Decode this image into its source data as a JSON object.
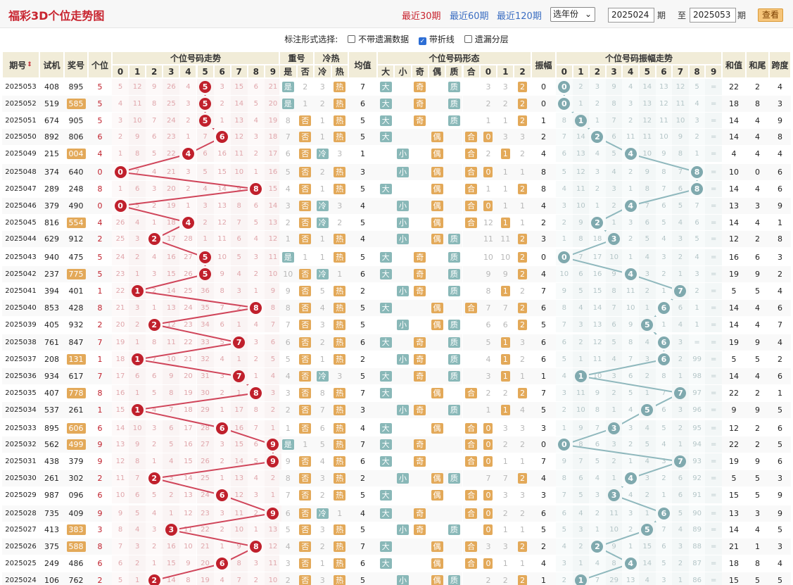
{
  "page": {
    "title": "福彩3D个位走势图"
  },
  "periods": {
    "p30": "最近30期",
    "p60": "最近60期",
    "p120": "最近120期",
    "year": "选年份"
  },
  "range": {
    "from": "2025024",
    "to": "2025053",
    "qi": "期",
    "zhi": "至",
    "view": "查看"
  },
  "options": {
    "label": "标注形式选择:",
    "items": [
      {
        "text": "不带遗漏数据",
        "checked": false
      },
      {
        "text": "带折线",
        "checked": true
      },
      {
        "text": "遗漏分层",
        "checked": false
      }
    ]
  },
  "headers": {
    "issue": "期号",
    "trial": "试机",
    "prize": "奖号",
    "unit": "个位",
    "trend": "个位号码走势",
    "repeat": "重号",
    "hot": "冷热",
    "avg": "均值",
    "form": "个位号码形态",
    "amp": "振幅",
    "ampTrend": "个位号码振幅走势",
    "sum": "和值",
    "tail": "和尾",
    "span": "跨度",
    "repSub": [
      "是",
      "否"
    ],
    "hotSub": [
      "冷",
      "热"
    ],
    "formSub": [
      "大",
      "小",
      "奇",
      "偶",
      "质",
      "合",
      "0",
      "1",
      "2"
    ],
    "digits": [
      "0",
      "1",
      "2",
      "3",
      "4",
      "5",
      "6",
      "7",
      "8",
      "9"
    ]
  },
  "rows": [
    {
      "issue": "2025053",
      "trial": "408",
      "prize": "895",
      "unit": 5,
      "miss": [
        5,
        12,
        9,
        26,
        4,
        0,
        3,
        15,
        6,
        21
      ],
      "rep": "是",
      "repN": 2,
      "cold": 3,
      "avg": 7,
      "r012": [
        3,
        4
      ],
      "amp": 0,
      "ampMiss": [
        0,
        2,
        3,
        9,
        4,
        14,
        13,
        12,
        5,
        "="
      ],
      "sum": 22,
      "tail": 2,
      "span": 4,
      "prizeHL": false
    },
    {
      "issue": "2025052",
      "trial": "519",
      "prize": "585",
      "unit": 5,
      "miss": [
        4,
        11,
        8,
        25,
        3,
        0,
        2,
        14,
        5,
        20
      ],
      "rep": "是",
      "repN": 1,
      "cold": 2,
      "avg": 6,
      "r012": [
        2,
        3
      ],
      "amp": 0,
      "ampMiss": [
        0,
        1,
        2,
        8,
        3,
        13,
        12,
        11,
        4,
        "="
      ],
      "sum": 18,
      "tail": 8,
      "span": 3,
      "prizeHL": true
    },
    {
      "issue": "2025051",
      "trial": "674",
      "prize": "905",
      "unit": 5,
      "miss": [
        3,
        10,
        7,
        24,
        2,
        0,
        1,
        13,
        4,
        19
      ],
      "rep": "否",
      "repN": 8,
      "cold": 1,
      "avg": 5,
      "r012": [
        1,
        2
      ],
      "amp": 1,
      "ampMiss": [
        8,
        1,
        1,
        7,
        2,
        12,
        11,
        10,
        3,
        "="
      ],
      "sum": 14,
      "tail": 4,
      "span": 9,
      "prizeHL": false
    },
    {
      "issue": "2025050",
      "trial": "892",
      "prize": "806",
      "unit": 6,
      "miss": [
        2,
        9,
        6,
        23,
        1,
        7,
        0,
        12,
        3,
        18
      ],
      "rep": "否",
      "repN": 7,
      "cold": 1,
      "avg": 5,
      "r012": [
        1,
        3
      ],
      "amp": 2,
      "ampMiss": [
        7,
        14,
        2,
        6,
        11,
        11,
        10,
        9,
        2,
        "="
      ],
      "sum": 14,
      "tail": 4,
      "span": 8,
      "prizeHL": false
    },
    {
      "issue": "2025049",
      "trial": "215",
      "prize": "004",
      "unit": 4,
      "miss": [
        1,
        8,
        5,
        22,
        0,
        6,
        16,
        11,
        2,
        17
      ],
      "rep": "否",
      "repN": 6,
      "cold": 3,
      "avg": 1,
      "r012": [
        2,
        2
      ],
      "amp": 4,
      "ampMiss": [
        6,
        13,
        4,
        5,
        4,
        10,
        9,
        8,
        1,
        "="
      ],
      "sum": 4,
      "tail": 4,
      "span": 4,
      "prizeHL": true
    },
    {
      "issue": "2025048",
      "trial": "374",
      "prize": "640",
      "unit": 0,
      "miss": [
        0,
        7,
        4,
        21,
        3,
        5,
        15,
        10,
        1,
        16
      ],
      "rep": "否",
      "repN": 5,
      "cold": 2,
      "avg": 3,
      "r012": [
        3,
        1
      ],
      "amp": 8,
      "ampMiss": [
        5,
        12,
        3,
        4,
        2,
        9,
        8,
        7,
        8,
        "="
      ],
      "sum": 10,
      "tail": 0,
      "span": 6,
      "prizeHL": false
    },
    {
      "issue": "2025047",
      "trial": "289",
      "prize": "248",
      "unit": 8,
      "miss": [
        1,
        6,
        3,
        20,
        2,
        4,
        14,
        9,
        0,
        15
      ],
      "rep": "否",
      "repN": 4,
      "cold": 1,
      "avg": 5,
      "r012": [
        1,
        2
      ],
      "amp": 8,
      "ampMiss": [
        4,
        11,
        2,
        3,
        1,
        8,
        7,
        6,
        8,
        "="
      ],
      "sum": 14,
      "tail": 4,
      "span": 6,
      "prizeHL": false
    },
    {
      "issue": "2025046",
      "trial": "379",
      "prize": "490",
      "unit": 0,
      "miss": [
        0,
        5,
        2,
        19,
        1,
        3,
        13,
        8,
        6,
        14
      ],
      "rep": "否",
      "repN": 3,
      "cold": 3,
      "avg": 4,
      "r012": [
        2,
        1
      ],
      "amp": 4,
      "ampMiss": [
        3,
        10,
        1,
        2,
        4,
        7,
        6,
        5,
        7,
        "="
      ],
      "sum": 13,
      "tail": 3,
      "span": 9,
      "prizeHL": false
    },
    {
      "issue": "2025045",
      "trial": "816",
      "prize": "554",
      "unit": 4,
      "miss": [
        26,
        4,
        1,
        18,
        0,
        2,
        12,
        7,
        5,
        13
      ],
      "rep": "否",
      "repN": 2,
      "cold": 2,
      "avg": 5,
      "r012": [
        12,
        1
      ],
      "amp": 2,
      "ampMiss": [
        2,
        9,
        2,
        1,
        3,
        6,
        5,
        4,
        6,
        "="
      ],
      "sum": 14,
      "tail": 4,
      "span": 1,
      "prizeHL": true
    },
    {
      "issue": "2025044",
      "trial": "629",
      "prize": "912",
      "unit": 2,
      "miss": [
        25,
        3,
        0,
        17,
        28,
        1,
        11,
        6,
        4,
        12
      ],
      "rep": "否",
      "repN": 1,
      "cold": 1,
      "avg": 4,
      "r012": [
        11,
        3
      ],
      "amp": 3,
      "ampMiss": [
        1,
        8,
        18,
        3,
        2,
        5,
        4,
        3,
        5,
        "="
      ],
      "sum": 12,
      "tail": 2,
      "span": 8,
      "prizeHL": false
    },
    {
      "issue": "2025043",
      "trial": "940",
      "prize": "475",
      "unit": 5,
      "miss": [
        24,
        2,
        4,
        16,
        27,
        0,
        10,
        5,
        3,
        11
      ],
      "rep": "是",
      "repN": 1,
      "cold": 1,
      "avg": 5,
      "r012": [
        10,
        2
      ],
      "amp": 0,
      "ampMiss": [
        0,
        7,
        17,
        10,
        1,
        4,
        3,
        2,
        4,
        "="
      ],
      "sum": 16,
      "tail": 6,
      "span": 3,
      "prizeHL": false
    },
    {
      "issue": "2025042",
      "trial": "237",
      "prize": "775",
      "unit": 5,
      "miss": [
        23,
        1,
        3,
        15,
        26,
        0,
        9,
        4,
        2,
        10
      ],
      "rep": "否",
      "repN": 10,
      "cold": 1,
      "avg": 6,
      "r012": [
        9,
        1
      ],
      "amp": 4,
      "ampMiss": [
        10,
        6,
        16,
        9,
        4,
        3,
        2,
        1,
        3,
        "="
      ],
      "sum": 19,
      "tail": 9,
      "span": 2,
      "prizeHL": true
    },
    {
      "issue": "2025041",
      "trial": "394",
      "prize": "401",
      "unit": 1,
      "miss": [
        22,
        0,
        2,
        14,
        25,
        36,
        8,
        3,
        1,
        9
      ],
      "rep": "否",
      "repN": 9,
      "cold": 5,
      "avg": 2,
      "r012": [
        8,
        2
      ],
      "amp": 7,
      "ampMiss": [
        9,
        5,
        15,
        8,
        11,
        2,
        1,
        7,
        2,
        "="
      ],
      "sum": 5,
      "tail": 5,
      "span": 4,
      "prizeHL": false
    },
    {
      "issue": "2025040",
      "trial": "853",
      "prize": "428",
      "unit": 8,
      "miss": [
        21,
        3,
        1,
        13,
        24,
        35,
        7,
        2,
        0,
        8
      ],
      "rep": "否",
      "repN": 8,
      "cold": 4,
      "avg": 5,
      "r012": [
        7,
        2
      ],
      "amp": 6,
      "ampMiss": [
        8,
        4,
        14,
        7,
        10,
        1,
        6,
        6,
        1,
        "="
      ],
      "sum": 14,
      "tail": 4,
      "span": 6,
      "prizeHL": false
    },
    {
      "issue": "2025039",
      "trial": "405",
      "prize": "932",
      "unit": 2,
      "miss": [
        20,
        2,
        0,
        12,
        23,
        34,
        6,
        1,
        4,
        7
      ],
      "rep": "否",
      "repN": 7,
      "cold": 3,
      "avg": 5,
      "r012": [
        6,
        1
      ],
      "amp": 5,
      "ampMiss": [
        7,
        3,
        13,
        6,
        9,
        5,
        1,
        4,
        1,
        "="
      ],
      "sum": 14,
      "tail": 4,
      "span": 7,
      "prizeHL": false
    },
    {
      "issue": "2025038",
      "trial": "761",
      "prize": "847",
      "unit": 7,
      "miss": [
        19,
        1,
        8,
        11,
        22,
        33,
        5,
        0,
        3,
        6
      ],
      "rep": "否",
      "repN": 6,
      "cold": 2,
      "avg": 6,
      "r012": [
        5,
        3
      ],
      "amp": 6,
      "ampMiss": [
        6,
        2,
        12,
        5,
        8,
        4,
        6,
        3,
        "=",
        "="
      ],
      "sum": 19,
      "tail": 9,
      "span": 4,
      "prizeHL": false
    },
    {
      "issue": "2025037",
      "trial": "208",
      "prize": "131",
      "unit": 1,
      "miss": [
        18,
        0,
        7,
        10,
        21,
        32,
        4,
        1,
        2,
        5
      ],
      "rep": "否",
      "repN": 5,
      "cold": 1,
      "avg": 2,
      "r012": [
        4,
        2
      ],
      "amp": 6,
      "ampMiss": [
        5,
        1,
        11,
        4,
        7,
        3,
        6,
        2,
        99,
        "="
      ],
      "sum": 5,
      "tail": 5,
      "span": 2,
      "prizeHL": true
    },
    {
      "issue": "2025036",
      "trial": "934",
      "prize": "617",
      "unit": 7,
      "miss": [
        17,
        6,
        6,
        9,
        20,
        31,
        3,
        0,
        1,
        4
      ],
      "rep": "否",
      "repN": 4,
      "cold": 3,
      "avg": 5,
      "r012": [
        3,
        1
      ],
      "amp": 1,
      "ampMiss": [
        4,
        1,
        10,
        3,
        6,
        2,
        8,
        1,
        98,
        "="
      ],
      "sum": 14,
      "tail": 4,
      "span": 6,
      "prizeHL": false
    },
    {
      "issue": "2025035",
      "trial": "407",
      "prize": "778",
      "unit": 8,
      "miss": [
        16,
        1,
        5,
        8,
        19,
        30,
        2,
        1,
        0,
        3
      ],
      "rep": "否",
      "repN": 3,
      "cold": 8,
      "avg": 7,
      "r012": [
        2,
        1
      ],
      "amp": 7,
      "ampMiss": [
        3,
        11,
        9,
        2,
        5,
        1,
        7,
        7,
        97,
        "="
      ],
      "sum": 22,
      "tail": 2,
      "span": 1,
      "prizeHL": true
    },
    {
      "issue": "2025034",
      "trial": "537",
      "prize": "261",
      "unit": 1,
      "miss": [
        15,
        0,
        4,
        7,
        18,
        29,
        1,
        17,
        8,
        2
      ],
      "rep": "否",
      "repN": 2,
      "cold": 7,
      "avg": 3,
      "r012": [
        1,
        4
      ],
      "amp": 5,
      "ampMiss": [
        2,
        10,
        8,
        1,
        4,
        5,
        6,
        3,
        96,
        "="
      ],
      "sum": 9,
      "tail": 9,
      "span": 5,
      "prizeHL": false
    },
    {
      "issue": "2025033",
      "trial": "895",
      "prize": "606",
      "unit": 6,
      "miss": [
        14,
        10,
        3,
        6,
        17,
        28,
        0,
        16,
        7,
        1
      ],
      "rep": "否",
      "repN": 1,
      "cold": 6,
      "avg": 4,
      "r012": [
        10,
        3
      ],
      "amp": 3,
      "ampMiss": [
        1,
        9,
        7,
        3,
        3,
        4,
        5,
        2,
        95,
        "="
      ],
      "sum": 12,
      "tail": 2,
      "span": 6,
      "prizeHL": true
    },
    {
      "issue": "2025032",
      "trial": "562",
      "prize": "499",
      "unit": 9,
      "miss": [
        13,
        9,
        2,
        5,
        16,
        27,
        3,
        15,
        6,
        0
      ],
      "rep": "是",
      "repN": 1,
      "cold": 5,
      "avg": 7,
      "r012": [
        9,
        2
      ],
      "amp": 0,
      "ampMiss": [
        0,
        8,
        6,
        3,
        2,
        5,
        4,
        1,
        94,
        "="
      ],
      "sum": 22,
      "tail": 2,
      "span": 5,
      "prizeHL": true
    },
    {
      "issue": "2025031",
      "trial": "438",
      "prize": "379",
      "unit": 9,
      "miss": [
        12,
        8,
        1,
        4,
        15,
        26,
        2,
        14,
        5,
        0
      ],
      "rep": "否",
      "repN": 9,
      "cold": 4,
      "avg": 6,
      "r012": [
        8,
        1
      ],
      "amp": 7,
      "ampMiss": [
        9,
        7,
        5,
        2,
        1,
        4,
        3,
        7,
        93,
        "="
      ],
      "sum": 19,
      "tail": 9,
      "span": 6,
      "prizeHL": false
    },
    {
      "issue": "2025030",
      "trial": "261",
      "prize": "302",
      "unit": 2,
      "miss": [
        11,
        7,
        0,
        3,
        14,
        25,
        1,
        13,
        4,
        2
      ],
      "rep": "否",
      "repN": 8,
      "cold": 3,
      "avg": 2,
      "r012": [
        7,
        2
      ],
      "amp": 4,
      "ampMiss": [
        8,
        6,
        4,
        1,
        4,
        3,
        2,
        6,
        92,
        "="
      ],
      "sum": 5,
      "tail": 5,
      "span": 3,
      "prizeHL": false
    },
    {
      "issue": "2025029",
      "trial": "987",
      "prize": "096",
      "unit": 6,
      "miss": [
        10,
        6,
        5,
        2,
        13,
        24,
        0,
        12,
        3,
        1
      ],
      "rep": "否",
      "repN": 7,
      "cold": 2,
      "avg": 5,
      "r012": [
        6,
        3
      ],
      "amp": 3,
      "ampMiss": [
        7,
        5,
        3,
        3,
        4,
        2,
        1,
        6,
        91,
        "="
      ],
      "sum": 15,
      "tail": 5,
      "span": 9,
      "prizeHL": false
    },
    {
      "issue": "2025028",
      "trial": "735",
      "prize": "409",
      "unit": 9,
      "miss": [
        9,
        5,
        4,
        1,
        12,
        23,
        3,
        11,
        2,
        0
      ],
      "rep": "否",
      "repN": 6,
      "cold": 1,
      "avg": 4,
      "r012": [
        5,
        2
      ],
      "amp": 6,
      "ampMiss": [
        6,
        4,
        2,
        11,
        3,
        1,
        6,
        5,
        90,
        "="
      ],
      "sum": 13,
      "tail": 3,
      "span": 9,
      "prizeHL": false
    },
    {
      "issue": "2025027",
      "trial": "413",
      "prize": "383",
      "unit": 3,
      "miss": [
        8,
        4,
        3,
        0,
        11,
        22,
        2,
        10,
        1,
        13
      ],
      "rep": "否",
      "repN": 5,
      "cold": 3,
      "avg": 5,
      "r012": [
        4,
        1
      ],
      "amp": 5,
      "ampMiss": [
        5,
        3,
        1,
        10,
        2,
        5,
        7,
        4,
        89,
        "="
      ],
      "sum": 14,
      "tail": 4,
      "span": 5,
      "prizeHL": true
    },
    {
      "issue": "2025026",
      "trial": "375",
      "prize": "588",
      "unit": 8,
      "miss": [
        7,
        3,
        2,
        16,
        10,
        21,
        1,
        9,
        0,
        12
      ],
      "rep": "否",
      "repN": 4,
      "cold": 2,
      "avg": 7,
      "r012": [
        3,
        2
      ],
      "amp": 2,
      "ampMiss": [
        4,
        2,
        2,
        9,
        1,
        15,
        6,
        3,
        88,
        "="
      ],
      "sum": 21,
      "tail": 1,
      "span": 3,
      "prizeHL": true
    },
    {
      "issue": "2025025",
      "trial": "249",
      "prize": "486",
      "unit": 6,
      "miss": [
        6,
        2,
        1,
        15,
        9,
        20,
        0,
        8,
        3,
        11
      ],
      "rep": "否",
      "repN": 3,
      "cold": 1,
      "avg": 6,
      "r012": [
        2,
        1
      ],
      "amp": 4,
      "ampMiss": [
        3,
        1,
        4,
        8,
        4,
        14,
        5,
        2,
        87,
        "="
      ],
      "sum": 18,
      "tail": 8,
      "span": 4,
      "prizeHL": false
    },
    {
      "issue": "2025024",
      "trial": "106",
      "prize": "762",
      "unit": 2,
      "miss": [
        5,
        1,
        0,
        14,
        8,
        19,
        4,
        7,
        2,
        10
      ],
      "rep": "否",
      "repN": 2,
      "cold": 3,
      "avg": 5,
      "r012": [
        2,
        1
      ],
      "amp": 1,
      "ampMiss": [
        2,
        1,
        7,
        29,
        13,
        4,
        3,
        1,
        86,
        "="
      ],
      "sum": 15,
      "tail": 5,
      "span": 5,
      "prizeHL": false
    }
  ],
  "colors": {
    "red": "#c0202c",
    "teal": "#8fb8bd",
    "orange": "#e3a959",
    "header": "#f1ecd8"
  }
}
